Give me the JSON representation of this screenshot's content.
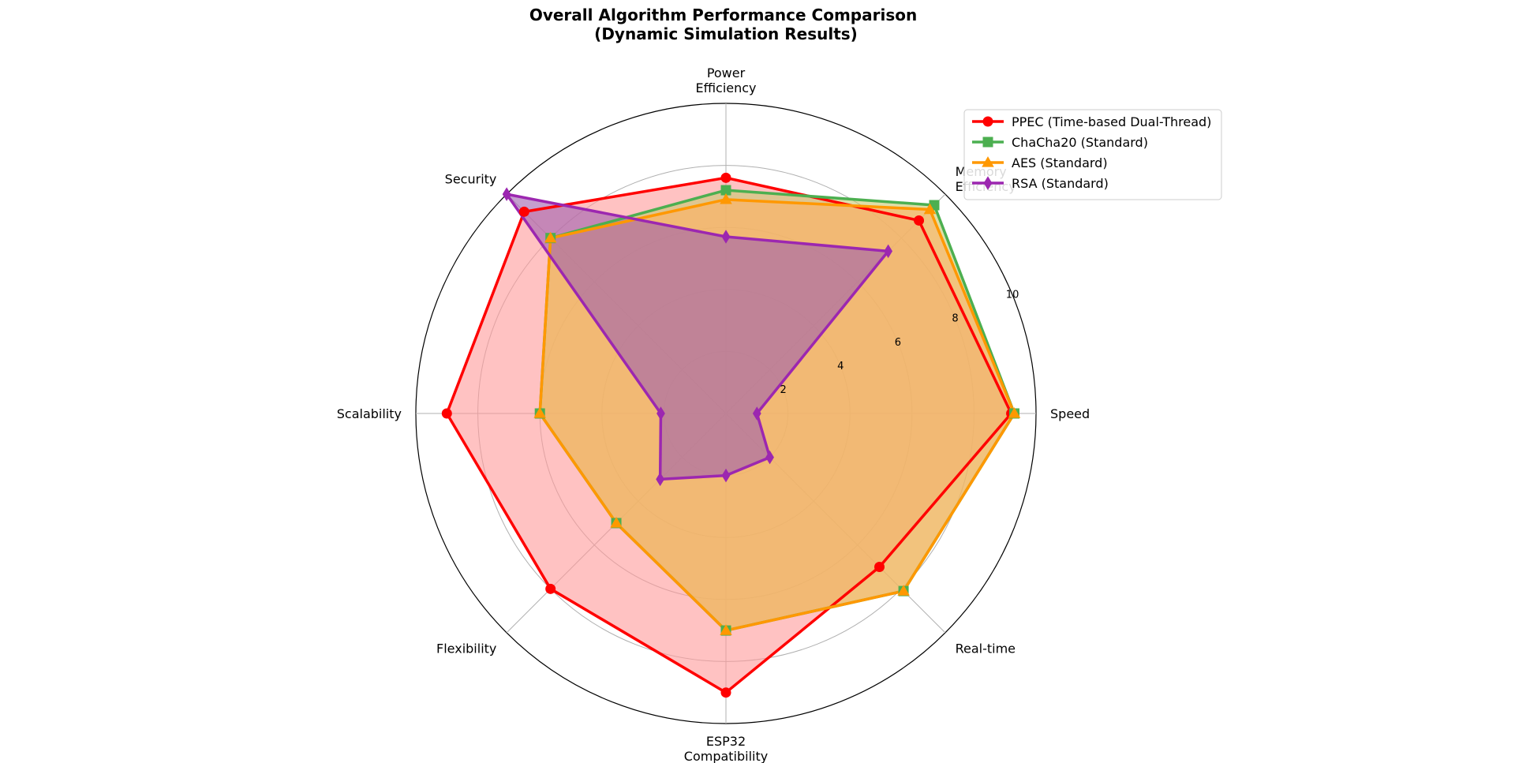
{
  "chart_data": {
    "type": "radar",
    "title": "Overall Algorithm Performance Comparison\n(Dynamic Simulation Results)",
    "categories": [
      "Speed",
      "Memory\nEfficiency",
      "Power\nEfficiency",
      "Security",
      "Scalability",
      "Flexibility",
      "ESP32\nCompatibility",
      "Real-time"
    ],
    "rlim": [
      0,
      10
    ],
    "rticks": [
      2,
      4,
      6,
      8,
      10
    ],
    "grid": true,
    "legend_position": "top-right",
    "series": [
      {
        "name": "PPEC (Time-based Dual-Thread)",
        "values": [
          9.2,
          8.8,
          7.6,
          9.2,
          9.0,
          8.0,
          9.0,
          7.0
        ],
        "color": "#ff0000",
        "marker": "circle",
        "fill": "#ff9999"
      },
      {
        "name": "ChaCha20 (Standard)",
        "values": [
          9.3,
          9.5,
          7.2,
          8.0,
          6.0,
          5.0,
          7.0,
          8.1
        ],
        "color": "#4caf50",
        "marker": "square",
        "fill": "#c8c870"
      },
      {
        "name": "AES (Standard)",
        "values": [
          9.3,
          9.3,
          6.9,
          8.0,
          6.0,
          5.0,
          7.0,
          8.1
        ],
        "color": "#ff9800",
        "marker": "triangle",
        "fill": "#ffb060"
      },
      {
        "name": "RSA (Standard)",
        "values": [
          1.0,
          7.4,
          5.7,
          10.0,
          2.1,
          3.0,
          2.0,
          2.0
        ],
        "color": "#9c27b0",
        "marker": "diamond",
        "fill": "#9f5faf"
      }
    ]
  }
}
